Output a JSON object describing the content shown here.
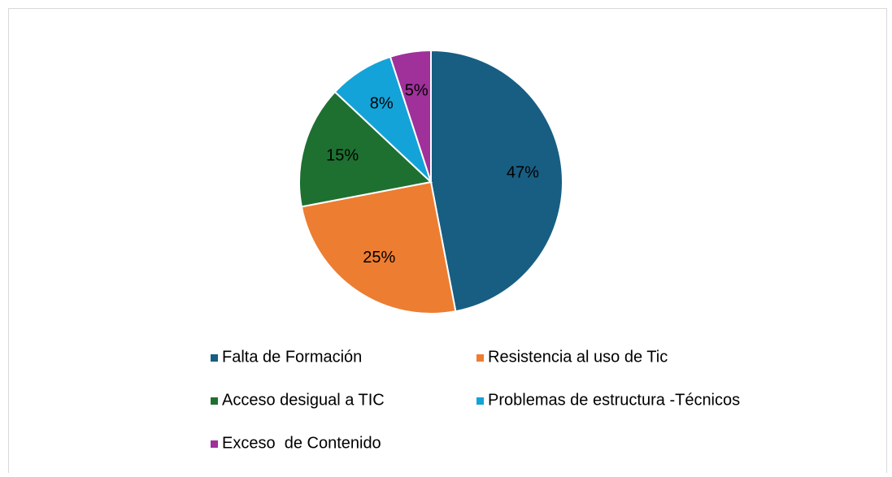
{
  "chart_data": {
    "type": "pie",
    "categories": [
      "Falta de Formación",
      "Resistencia al uso de Tic",
      "Acceso desigual a TIC",
      "Problemas de estructura -Técnicos",
      "Exceso  de Contenido"
    ],
    "values": [
      47,
      25,
      15,
      8,
      5
    ],
    "value_labels": [
      "47%",
      "25%",
      "15%",
      "8%",
      "5%"
    ],
    "colors": [
      "#175e82",
      "#ed7d31",
      "#1e7031",
      "#13a3d8",
      "#a0309a"
    ],
    "legend": "bottom"
  }
}
